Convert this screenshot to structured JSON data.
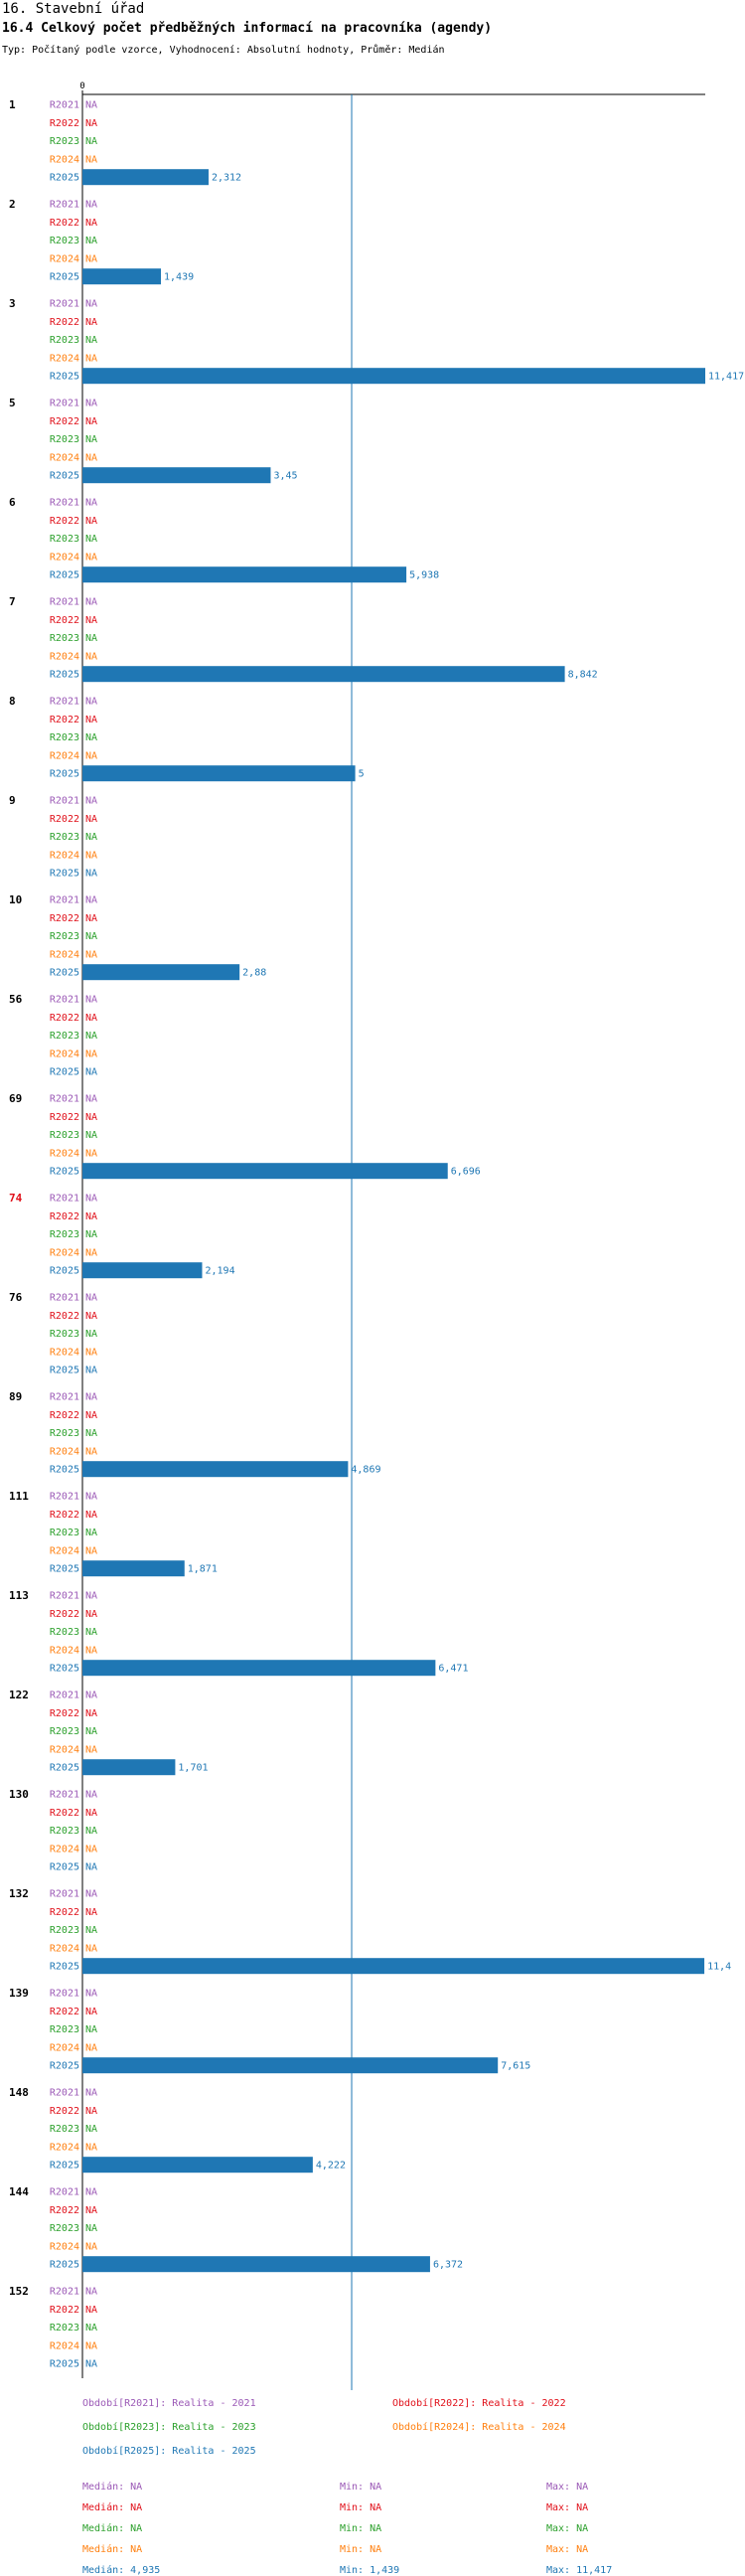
{
  "header": {
    "title": "16. Stavební úřad",
    "subtitle": "16.4 Celkový počet předběžných informací na pracovníka (agendy)",
    "type_line": "Typ: Počítaný podle vzorce, Vyhodnocení: Absolutní hodnoty, Průměr: Medián"
  },
  "chart_data": {
    "type": "bar",
    "orientation": "horizontal",
    "x_tick_labels": [
      "0"
    ],
    "xlim": [
      0,
      11.417
    ],
    "reference_line": {
      "value": 4.935,
      "label": "Medián"
    },
    "series": [
      {
        "name": "R2021",
        "color": "#9b59b6"
      },
      {
        "name": "R2022",
        "color": "#e0101a"
      },
      {
        "name": "R2023",
        "color": "#2ca02c"
      },
      {
        "name": "R2024",
        "color": "#ff7f0e"
      },
      {
        "name": "R2025",
        "color": "#1f77b4"
      }
    ],
    "na_label": "NA",
    "groups": [
      {
        "label": "1",
        "highlight": false,
        "values": [
          null,
          null,
          null,
          null,
          2.312
        ],
        "labels": [
          "NA",
          "NA",
          "NA",
          "NA",
          "2,312"
        ]
      },
      {
        "label": "2",
        "highlight": false,
        "values": [
          null,
          null,
          null,
          null,
          1.439
        ],
        "labels": [
          "NA",
          "NA",
          "NA",
          "NA",
          "1,439"
        ]
      },
      {
        "label": "3",
        "highlight": false,
        "values": [
          null,
          null,
          null,
          null,
          11.417
        ],
        "labels": [
          "NA",
          "NA",
          "NA",
          "NA",
          "11,417"
        ]
      },
      {
        "label": "5",
        "highlight": false,
        "values": [
          null,
          null,
          null,
          null,
          3.45
        ],
        "labels": [
          "NA",
          "NA",
          "NA",
          "NA",
          "3,45"
        ]
      },
      {
        "label": "6",
        "highlight": false,
        "values": [
          null,
          null,
          null,
          null,
          5.938
        ],
        "labels": [
          "NA",
          "NA",
          "NA",
          "NA",
          "5,938"
        ]
      },
      {
        "label": "7",
        "highlight": false,
        "values": [
          null,
          null,
          null,
          null,
          8.842
        ],
        "labels": [
          "NA",
          "NA",
          "NA",
          "NA",
          "8,842"
        ]
      },
      {
        "label": "8",
        "highlight": false,
        "values": [
          null,
          null,
          null,
          null,
          5
        ],
        "labels": [
          "NA",
          "NA",
          "NA",
          "NA",
          "5"
        ]
      },
      {
        "label": "9",
        "highlight": false,
        "values": [
          null,
          null,
          null,
          null,
          null
        ],
        "labels": [
          "NA",
          "NA",
          "NA",
          "NA",
          "NA"
        ]
      },
      {
        "label": "10",
        "highlight": false,
        "values": [
          null,
          null,
          null,
          null,
          2.88
        ],
        "labels": [
          "NA",
          "NA",
          "NA",
          "NA",
          "2,88"
        ]
      },
      {
        "label": "56",
        "highlight": false,
        "values": [
          null,
          null,
          null,
          null,
          null
        ],
        "labels": [
          "NA",
          "NA",
          "NA",
          "NA",
          "NA"
        ]
      },
      {
        "label": "69",
        "highlight": false,
        "values": [
          null,
          null,
          null,
          null,
          6.696
        ],
        "labels": [
          "NA",
          "NA",
          "NA",
          "NA",
          "6,696"
        ]
      },
      {
        "label": "74",
        "highlight": true,
        "values": [
          null,
          null,
          null,
          null,
          2.194
        ],
        "labels": [
          "NA",
          "NA",
          "NA",
          "NA",
          "2,194"
        ]
      },
      {
        "label": "76",
        "highlight": false,
        "values": [
          null,
          null,
          null,
          null,
          null
        ],
        "labels": [
          "NA",
          "NA",
          "NA",
          "NA",
          "NA"
        ]
      },
      {
        "label": "89",
        "highlight": false,
        "values": [
          null,
          null,
          null,
          null,
          4.869
        ],
        "labels": [
          "NA",
          "NA",
          "NA",
          "NA",
          "4,869"
        ]
      },
      {
        "label": "111",
        "highlight": false,
        "values": [
          null,
          null,
          null,
          null,
          1.871
        ],
        "labels": [
          "NA",
          "NA",
          "NA",
          "NA",
          "1,871"
        ]
      },
      {
        "label": "113",
        "highlight": false,
        "values": [
          null,
          null,
          null,
          null,
          6.471
        ],
        "labels": [
          "NA",
          "NA",
          "NA",
          "NA",
          "6,471"
        ]
      },
      {
        "label": "122",
        "highlight": false,
        "values": [
          null,
          null,
          null,
          null,
          1.701
        ],
        "labels": [
          "NA",
          "NA",
          "NA",
          "NA",
          "1,701"
        ]
      },
      {
        "label": "130",
        "highlight": false,
        "values": [
          null,
          null,
          null,
          null,
          null
        ],
        "labels": [
          "NA",
          "NA",
          "NA",
          "NA",
          "NA"
        ]
      },
      {
        "label": "132",
        "highlight": false,
        "values": [
          null,
          null,
          null,
          null,
          11.4
        ],
        "labels": [
          "NA",
          "NA",
          "NA",
          "NA",
          "11,4"
        ]
      },
      {
        "label": "139",
        "highlight": false,
        "values": [
          null,
          null,
          null,
          null,
          7.615
        ],
        "labels": [
          "NA",
          "NA",
          "NA",
          "NA",
          "7,615"
        ]
      },
      {
        "label": "148",
        "highlight": false,
        "values": [
          null,
          null,
          null,
          null,
          4.222
        ],
        "labels": [
          "NA",
          "NA",
          "NA",
          "NA",
          "4,222"
        ]
      },
      {
        "label": "144",
        "highlight": false,
        "values": [
          null,
          null,
          null,
          null,
          6.372
        ],
        "labels": [
          "NA",
          "NA",
          "NA",
          "NA",
          "6,372"
        ]
      },
      {
        "label": "152",
        "highlight": false,
        "values": [
          null,
          null,
          null,
          null,
          null
        ],
        "labels": [
          "NA",
          "NA",
          "NA",
          "NA",
          "NA"
        ]
      }
    ]
  },
  "legend": {
    "periods": [
      {
        "text": "Období[R2021]: Realita - 2021",
        "color": "#9b59b6"
      },
      {
        "text": "Období[R2022]: Realita - 2022",
        "color": "#e0101a"
      },
      {
        "text": "Období[R2023]: Realita - 2023",
        "color": "#2ca02c"
      },
      {
        "text": "Období[R2024]: Realita - 2024",
        "color": "#ff7f0e"
      },
      {
        "text": "Období[R2025]: Realita - 2025",
        "color": "#1f77b4"
      }
    ],
    "stats": [
      {
        "median": "Medián: NA",
        "min": "Min: NA",
        "max": "Max: NA",
        "color": "#9b59b6"
      },
      {
        "median": "Medián: NA",
        "min": "Min: NA",
        "max": "Max: NA",
        "color": "#e0101a"
      },
      {
        "median": "Medián: NA",
        "min": "Min: NA",
        "max": "Max: NA",
        "color": "#2ca02c"
      },
      {
        "median": "Medián: NA",
        "min": "Min: NA",
        "max": "Max: NA",
        "color": "#ff7f0e"
      },
      {
        "median": "Medián: 4,935",
        "min": "Min: 1,439",
        "max": "Max: 11,417",
        "color": "#1f77b4"
      }
    ]
  }
}
